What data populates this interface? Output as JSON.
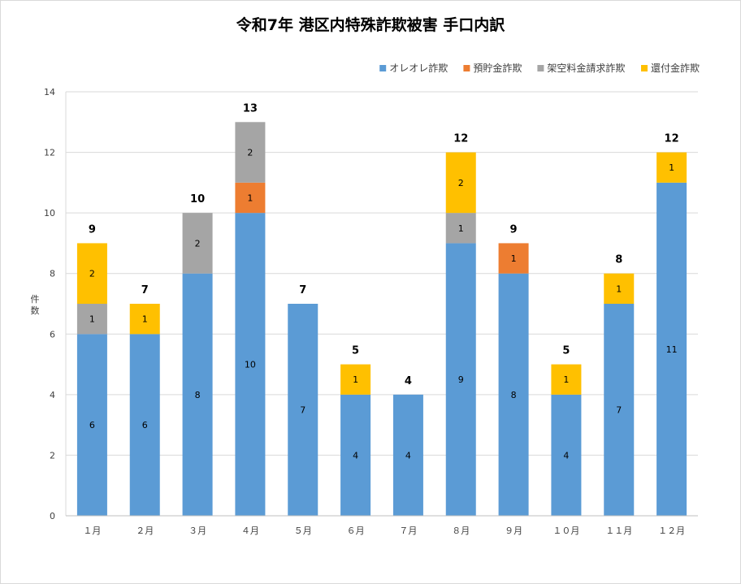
{
  "chart_data": {
    "type": "bar",
    "stacked": true,
    "title": "令和7年 港区内特殊詐欺被害 手口内訳",
    "ylabel": "件数",
    "xlabel": "",
    "ylim": [
      0,
      14
    ],
    "yticks": [
      0,
      2,
      4,
      6,
      8,
      10,
      12,
      14
    ],
    "grid": true,
    "legend_position": "top-right",
    "categories": [
      "１月",
      "２月",
      "３月",
      "４月",
      "５月",
      "６月",
      "７月",
      "８月",
      "９月",
      "１０月",
      "１１月",
      "１２月"
    ],
    "series": [
      {
        "name": "オレオレ詐欺",
        "color": "#5b9bd5",
        "values": [
          6,
          6,
          8,
          10,
          7,
          4,
          4,
          9,
          8,
          4,
          7,
          11
        ]
      },
      {
        "name": "預貯金詐欺",
        "color": "#ed7d31",
        "values": [
          0,
          0,
          0,
          1,
          0,
          0,
          0,
          0,
          1,
          0,
          0,
          0
        ]
      },
      {
        "name": "架空料金請求詐欺",
        "color": "#a5a5a5",
        "values": [
          1,
          0,
          2,
          2,
          0,
          0,
          0,
          1,
          0,
          0,
          0,
          0
        ]
      },
      {
        "name": "還付金詐欺",
        "color": "#ffc000",
        "values": [
          2,
          1,
          0,
          0,
          0,
          1,
          0,
          2,
          0,
          1,
          1,
          1
        ]
      }
    ],
    "totals": [
      9,
      7,
      10,
      13,
      7,
      5,
      4,
      12,
      9,
      5,
      8,
      12
    ]
  }
}
